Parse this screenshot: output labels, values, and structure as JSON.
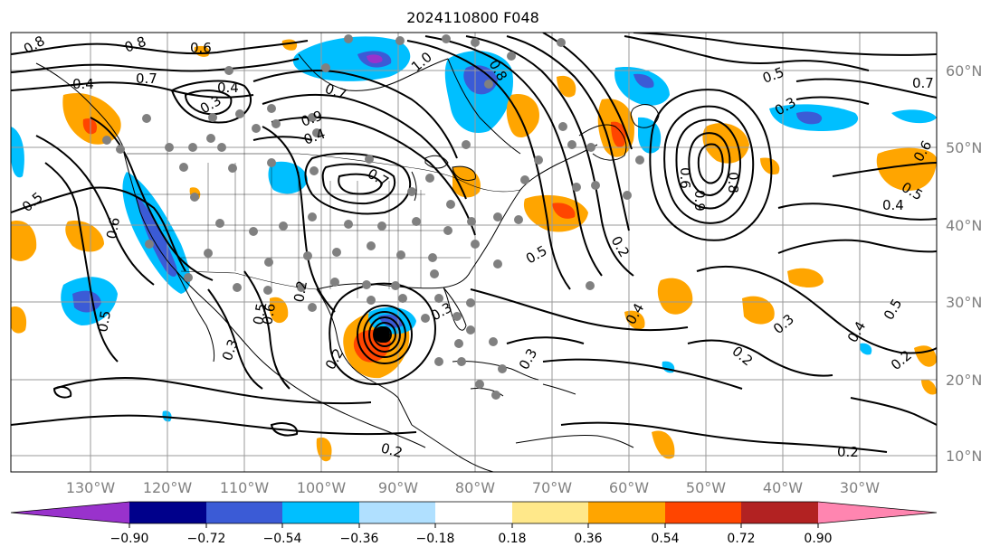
{
  "title": "2024110800 F048",
  "lat_labels": [
    "60°N",
    "50°N",
    "40°N",
    "30°N",
    "20°N",
    "10°N"
  ],
  "lon_labels": [
    "130°W",
    "120°W",
    "110°W",
    "100°W",
    "90°W",
    "80°W",
    "70°W",
    "60°W",
    "50°W",
    "40°W",
    "30°W"
  ],
  "colorbar": {
    "ticks": [
      "−0.90",
      "−0.72",
      "−0.54",
      "−0.36",
      "−0.18",
      "0.18",
      "0.36",
      "0.54",
      "0.72",
      "0.90"
    ],
    "colors": [
      "#9932cc",
      "#00008b",
      "#3b5bd6",
      "#00bfff",
      "#b0e0ff",
      "#ffffff",
      "#ffe88a",
      "#ffa500",
      "#ff4500",
      "#b22222",
      "#ff85b0"
    ]
  },
  "contour_labels": [
    "0.8",
    "0.8",
    "0.6",
    "0.4",
    "0.7",
    "0.4",
    "0.3",
    "1.0",
    "0.7",
    "0.8",
    "0.5",
    "0.7",
    "0.3",
    "0.2",
    "0.5",
    "0.6",
    "0.9",
    "0.4",
    "0.5",
    "0.6",
    "0.5",
    "0.8",
    "0.4",
    "0.2",
    "0.2",
    "0.7",
    "0.5",
    "0.3",
    "0.4",
    "0.3",
    "0.2",
    "0.4",
    "0.3",
    "0.5",
    "0.2",
    "0.2",
    "0.2",
    "0.3",
    "0.5",
    "0.6",
    "0.9",
    "0.6"
  ]
}
